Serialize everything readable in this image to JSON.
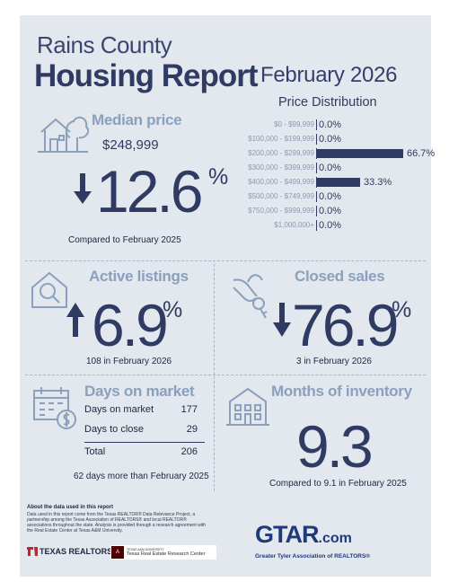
{
  "header": {
    "county": "Rains County",
    "report_title": "Housing Report",
    "month": "February 2026"
  },
  "price_distribution": {
    "title": "Price Distribution",
    "rows": [
      {
        "label": "$0 - $99,999",
        "value": "0.0%"
      },
      {
        "label": "$100,000 - $199,999",
        "value": "0.0%"
      },
      {
        "label": "$200,000 - $299,999",
        "value": "66.7%"
      },
      {
        "label": "$300,000 - $399,999",
        "value": "0.0%"
      },
      {
        "label": "$400,000 - $499,999",
        "value": "33.3%"
      },
      {
        "label": "$500,000 - $749,999",
        "value": "0.0%"
      },
      {
        "label": "$750,000 - $999,999",
        "value": "0.0%"
      },
      {
        "label": "$1,000,000+",
        "value": "0.0%"
      }
    ],
    "bar_fraction": [
      0,
      0,
      0.667,
      0,
      0.333,
      0,
      0,
      0
    ]
  },
  "median_price": {
    "title": "Median price",
    "price": "$248,999",
    "change": "12.6",
    "pct": "%",
    "direction": "down",
    "note": "Compared to February 2025"
  },
  "active_listings": {
    "title": "Active listings",
    "change": "6.9",
    "pct": "%",
    "direction": "up",
    "note": "108 in February 2026"
  },
  "closed_sales": {
    "title": "Closed sales",
    "change": "76.9",
    "pct": "%",
    "direction": "down",
    "note": "3 in February 2026"
  },
  "days_on_market": {
    "title": "Days on market",
    "rows": [
      {
        "label": "Days on market",
        "value": "177"
      },
      {
        "label": "Days to close",
        "value": "29"
      },
      {
        "label": "Total",
        "value": "206"
      }
    ],
    "note": "62 days more than February 2025"
  },
  "months_inventory": {
    "title": "Months of inventory",
    "value": "9.3",
    "note": "Compared to 9.1 in February 2025"
  },
  "footer": {
    "heading": "About the data used in this report",
    "text": "Data used in this report come from the Texas REALTOR® Data Relevance Project, a partnership among the Texas Association of REALTORS® and local REALTOR® associations throughout the state. Analysis is provided through a research agreement with the Real Estate Center at Texas A&M University.",
    "texas_realtors": "TEXAS REALTORS",
    "tamu_small": "TEXAS A&M UNIVERSITY",
    "tamu_center": "Texas Real Estate Research Center",
    "gtar": "GTAR",
    "gtar_com": ".com",
    "gtar_sub": "Greater Tyler Association of REALTORS®"
  },
  "colors": {
    "navy": "#2f3b63",
    "slate": "#8aa0bc",
    "background": "#e3e7ee",
    "gtar_red": "#c4252b"
  }
}
